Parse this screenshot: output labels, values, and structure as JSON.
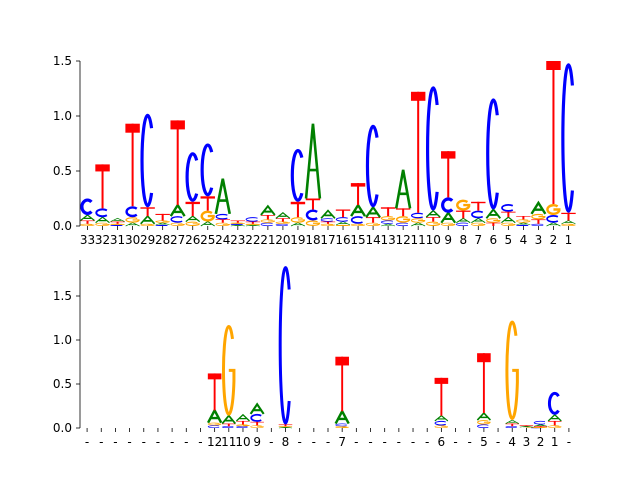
{
  "colors": {
    "A": "#008000",
    "C": "#0000ff",
    "G": "#ffa500",
    "T": "#ff0000"
  },
  "chart_data": [
    {
      "type": "sequence-logo",
      "ylim": [
        0,
        1.7
      ],
      "yticks": [
        "0.0",
        "0.5",
        "1.0",
        "1.5"
      ],
      "grid": false,
      "xticklabels": [
        "33",
        "32",
        "31",
        "30",
        "29",
        "28",
        "27",
        "26",
        "25",
        "24",
        "23",
        "22",
        "21",
        "20",
        "19",
        "18",
        "17",
        "16",
        "15",
        "14",
        "13",
        "12",
        "11",
        "10",
        "9",
        "8",
        "7",
        "6",
        "5",
        "4",
        "3",
        "2",
        "1"
      ],
      "positions": [
        {
          "A": 0.05,
          "C": 0.15,
          "G": 0.02,
          "T": 0.03
        },
        {
          "A": 0.05,
          "C": 0.08,
          "G": 0.03,
          "T": 0.4
        },
        {
          "A": 0.03,
          "C": 0.01,
          "G": 0.01,
          "T": 0.02
        },
        {
          "A": 0.03,
          "C": 0.1,
          "G": 0.05,
          "T": 0.75
        },
        {
          "A": 0.07,
          "C": 0.85,
          "G": 0.02,
          "T": 0.08
        },
        {
          "A": 0.02,
          "C": 0.01,
          "G": 0.02,
          "T": 0.06
        },
        {
          "A": 0.1,
          "C": 0.06,
          "G": 0.03,
          "T": 0.77
        },
        {
          "A": 0.05,
          "C": 0.45,
          "G": 0.04,
          "T": 0.13
        },
        {
          "A": 0.04,
          "C": 0.48,
          "G": 0.1,
          "T": 0.13
        },
        {
          "A": 0.32,
          "C": 0.05,
          "G": 0.03,
          "T": 0.03
        },
        {
          "A": 0.01,
          "C": 0.01,
          "G": 0.01,
          "T": 0.02
        },
        {
          "A": 0.01,
          "C": 0.04,
          "G": 0.01,
          "T": 0.02
        },
        {
          "A": 0.08,
          "C": 0.03,
          "G": 0.03,
          "T": 0.04
        },
        {
          "A": 0.05,
          "C": 0.02,
          "G": 0.02,
          "T": 0.03
        },
        {
          "A": 0.03,
          "C": 0.48,
          "G": 0.05,
          "T": 0.14
        },
        {
          "A": 0.68,
          "C": 0.1,
          "G": 0.05,
          "T": 0.1
        },
        {
          "A": 0.07,
          "C": 0.03,
          "G": 0.02,
          "T": 0.02
        },
        {
          "A": 0.03,
          "C": 0.04,
          "G": 0.01,
          "T": 0.07
        },
        {
          "A": 0.1,
          "C": 0.07,
          "G": 0.02,
          "T": 0.2
        },
        {
          "A": 0.09,
          "C": 0.75,
          "G": 0.03,
          "T": 0.05
        },
        {
          "A": 0.02,
          "C": 0.03,
          "G": 0.04,
          "T": 0.08
        },
        {
          "A": 0.35,
          "C": 0.03,
          "G": 0.06,
          "T": 0.07
        },
        {
          "A": 0.03,
          "C": 0.05,
          "G": 0.04,
          "T": 1.1
        },
        {
          "A": 0.06,
          "C": 1.13,
          "G": 0.04,
          "T": 0.04
        },
        {
          "A": 0.09,
          "C": 0.14,
          "G": 0.03,
          "T": 0.42
        },
        {
          "A": 0.04,
          "C": 0.03,
          "G": 0.1,
          "T": 0.07
        },
        {
          "A": 0.04,
          "C": 0.07,
          "G": 0.03,
          "T": 0.08
        },
        {
          "A": 0.08,
          "C": 1.01,
          "G": 0.04,
          "T": 0.03
        },
        {
          "A": 0.05,
          "C": 0.07,
          "G": 0.03,
          "T": 0.05
        },
        {
          "A": 0.02,
          "C": 0.01,
          "G": 0.03,
          "T": 0.03
        },
        {
          "A": 0.1,
          "C": 0.02,
          "G": 0.05,
          "T": 0.04
        },
        {
          "A": 0.03,
          "C": 0.07,
          "G": 0.1,
          "T": 1.3
        },
        {
          "A": 0.03,
          "C": 1.36,
          "G": 0.02,
          "T": 0.07
        }
      ]
    },
    {
      "type": "sequence-logo",
      "ylim": [
        0,
        1.9
      ],
      "yticks": [
        "0.0",
        "0.5",
        "1.0",
        "1.5"
      ],
      "grid": false,
      "xticklabels": [
        "-",
        "-",
        "-",
        "-",
        "-",
        "-",
        "-",
        "-",
        "-",
        "12",
        "11",
        "10",
        "9",
        "-",
        "8",
        "-",
        "-",
        "-",
        "7",
        "-",
        "-",
        "-",
        "-",
        "-",
        "-",
        "6",
        "-",
        "-",
        "5",
        "-",
        "4",
        "3",
        "2",
        "1",
        "-"
      ],
      "positions": [
        {
          "A": 0,
          "C": 0,
          "G": 0,
          "T": 0
        },
        {
          "A": 0,
          "C": 0,
          "G": 0,
          "T": 0
        },
        {
          "A": 0,
          "C": 0,
          "G": 0,
          "T": 0
        },
        {
          "A": 0,
          "C": 0,
          "G": 0,
          "T": 0
        },
        {
          "A": 0,
          "C": 0,
          "G": 0,
          "T": 0
        },
        {
          "A": 0,
          "C": 0,
          "G": 0,
          "T": 0
        },
        {
          "A": 0,
          "C": 0,
          "G": 0,
          "T": 0
        },
        {
          "A": 0,
          "C": 0,
          "G": 0,
          "T": 0
        },
        {
          "A": 0,
          "C": 0,
          "G": 0,
          "T": 0
        },
        {
          "A": 0.14,
          "C": 0.03,
          "G": 0.03,
          "T": 0.42
        },
        {
          "A": 0.09,
          "C": 0.02,
          "G": 1.03,
          "T": 0.03
        },
        {
          "A": 0.07,
          "C": 0.02,
          "G": 0.02,
          "T": 0.04
        },
        {
          "A": 0.11,
          "C": 0.09,
          "G": 0.03,
          "T": 0.04
        },
        {
          "A": 0,
          "C": 0,
          "G": 0,
          "T": 0
        },
        {
          "A": 0.01,
          "C": 1.8,
          "G": 0.01,
          "T": 0.02
        },
        {
          "A": 0,
          "C": 0,
          "G": 0,
          "T": 0
        },
        {
          "A": 0,
          "C": 0,
          "G": 0,
          "T": 0
        },
        {
          "A": 0,
          "C": 0,
          "G": 0,
          "T": 0
        },
        {
          "A": 0.14,
          "C": 0.03,
          "G": 0.02,
          "T": 0.62
        },
        {
          "A": 0,
          "C": 0,
          "G": 0,
          "T": 0
        },
        {
          "A": 0,
          "C": 0,
          "G": 0,
          "T": 0
        },
        {
          "A": 0,
          "C": 0,
          "G": 0,
          "T": 0
        },
        {
          "A": 0,
          "C": 0,
          "G": 0,
          "T": 0
        },
        {
          "A": 0,
          "C": 0,
          "G": 0,
          "T": 0
        },
        {
          "A": 0,
          "C": 0,
          "G": 0,
          "T": 0
        },
        {
          "A": 0.06,
          "C": 0.05,
          "G": 0.03,
          "T": 0.43
        },
        {
          "A": 0,
          "C": 0,
          "G": 0,
          "T": 0
        },
        {
          "A": 0,
          "C": 0,
          "G": 0,
          "T": 0
        },
        {
          "A": 0.08,
          "C": 0.04,
          "G": 0.05,
          "T": 0.68
        },
        {
          "A": 0,
          "C": 0,
          "G": 0,
          "T": 0
        },
        {
          "A": 0.04,
          "C": 0.02,
          "G": 1.13,
          "T": 0.03
        },
        {
          "A": 0.01,
          "C": 0.005,
          "G": 0.005,
          "T": 0.01
        },
        {
          "A": 0.02,
          "C": 0.04,
          "G": 0.01,
          "T": 0.01
        },
        {
          "A": 0.07,
          "C": 0.26,
          "G": 0.03,
          "T": 0.05
        },
        {
          "A": 0,
          "C": 0,
          "G": 0,
          "T": 0
        }
      ]
    }
  ]
}
